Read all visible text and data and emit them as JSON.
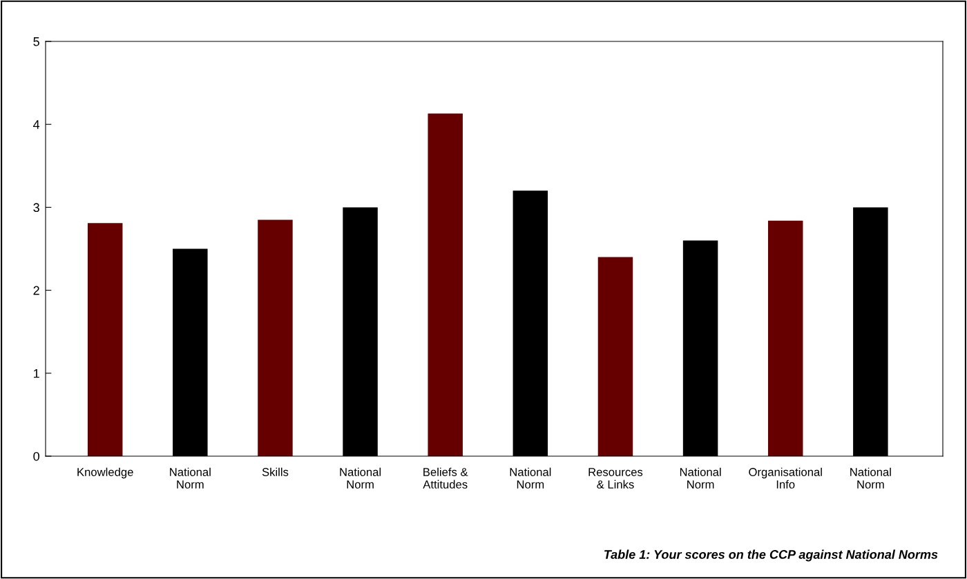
{
  "chart_data": {
    "type": "bar",
    "categories": [
      "Knowledge",
      "National\nNorm",
      "Skills",
      "National\nNorm",
      "Beliefs &\nAttitudes",
      "National\nNorm",
      "Resources\n& Links",
      "National\nNorm",
      "Organisational\nInfo",
      "National\nNorm"
    ],
    "values": [
      2.81,
      2.5,
      2.85,
      3.0,
      4.13,
      3.2,
      2.4,
      2.6,
      2.84,
      3.0
    ],
    "colors": [
      "#660000",
      "#000000",
      "#660000",
      "#000000",
      "#660000",
      "#000000",
      "#660000",
      "#000000",
      "#660000",
      "#000000"
    ],
    "ylim": [
      0,
      5
    ],
    "yticks": [
      0,
      1,
      2,
      3,
      4,
      5
    ],
    "grid": false,
    "legend": false,
    "annotations": [
      "Table 1: Your scores on the CCP against National Norms"
    ]
  }
}
